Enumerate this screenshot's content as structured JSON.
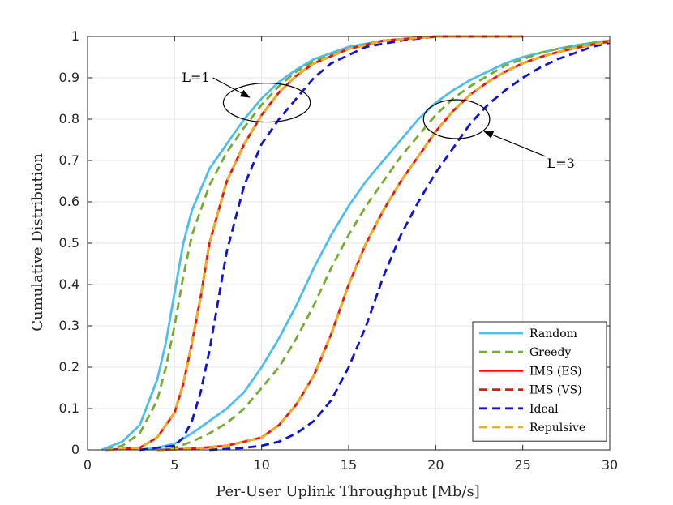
{
  "chart_data": {
    "type": "line",
    "title": "",
    "xlabel": "Per-User Uplink Throughput [Mb/s]",
    "ylabel": "Cumulative Distribution",
    "xlim": [
      0,
      30
    ],
    "ylim": [
      0,
      1
    ],
    "xticks": [
      0,
      5,
      10,
      15,
      20,
      25,
      30
    ],
    "yticks": [
      0,
      0.1,
      0.2,
      0.3,
      0.4,
      0.5,
      0.6,
      0.7,
      0.8,
      0.9,
      1
    ],
    "ytick_labels": [
      "0",
      "0.1",
      "0.2",
      "0.3",
      "0.4",
      "0.5",
      "0.6",
      "0.7",
      "0.8",
      "0.9",
      "1"
    ],
    "grid": true,
    "legend_position": "bottom-right",
    "series": [
      {
        "name": "Random",
        "group": "L=1",
        "color": "#4DBEEE",
        "dash": "solid",
        "x": [
          0.8,
          2,
          3,
          4,
          4.5,
          5,
          5.5,
          6,
          7,
          8,
          9,
          10,
          11,
          12,
          13,
          15,
          17,
          20,
          25
        ],
        "y": [
          0,
          0.02,
          0.06,
          0.17,
          0.26,
          0.38,
          0.5,
          0.58,
          0.68,
          0.74,
          0.8,
          0.85,
          0.89,
          0.92,
          0.945,
          0.975,
          0.99,
          1,
          1
        ]
      },
      {
        "name": "Greedy",
        "group": "L=1",
        "color": "#77AC30",
        "dash": "dashed",
        "x": [
          1,
          2,
          3,
          4,
          4.5,
          5,
          5.5,
          6,
          7,
          8,
          9,
          10,
          11,
          12,
          13,
          15,
          17,
          20,
          25
        ],
        "y": [
          0,
          0.01,
          0.04,
          0.12,
          0.2,
          0.3,
          0.42,
          0.52,
          0.64,
          0.72,
          0.78,
          0.835,
          0.88,
          0.915,
          0.94,
          0.97,
          0.99,
          1,
          1
        ]
      },
      {
        "name": "IMS (ES)",
        "group": "L=1",
        "color": "#EE1111",
        "dash": "solid",
        "x": [
          1,
          3,
          4,
          5,
          5.5,
          6,
          6.5,
          7,
          8,
          9,
          10,
          11,
          12,
          13,
          15,
          17,
          20,
          25
        ],
        "y": [
          0,
          0.005,
          0.03,
          0.09,
          0.16,
          0.26,
          0.37,
          0.5,
          0.65,
          0.74,
          0.81,
          0.865,
          0.905,
          0.935,
          0.97,
          0.99,
          1,
          1
        ]
      },
      {
        "name": "IMS (VS)",
        "group": "L=1",
        "color": "#EE1111",
        "dash": "dashed",
        "x": [
          1,
          3,
          4,
          5,
          5.5,
          6,
          6.5,
          7,
          8,
          9,
          10,
          11,
          12,
          13,
          15,
          17,
          20,
          25
        ],
        "y": [
          0,
          0.005,
          0.03,
          0.09,
          0.16,
          0.26,
          0.37,
          0.5,
          0.65,
          0.74,
          0.81,
          0.865,
          0.905,
          0.935,
          0.97,
          0.99,
          1,
          1
        ]
      },
      {
        "name": "Ideal",
        "group": "L=1",
        "color": "#1111DD",
        "dash": "dashed",
        "x": [
          3,
          5,
          5.5,
          6,
          6.5,
          7,
          7.5,
          8,
          9,
          10,
          11,
          12,
          13,
          14,
          16,
          18,
          20,
          25
        ],
        "y": [
          0,
          0.01,
          0.03,
          0.07,
          0.14,
          0.24,
          0.36,
          0.48,
          0.64,
          0.74,
          0.8,
          0.85,
          0.9,
          0.935,
          0.975,
          0.99,
          1,
          1
        ]
      },
      {
        "name": "Repulsive",
        "group": "L=1",
        "color": "#EDB120",
        "dash": "dashed",
        "x": [
          1,
          3,
          4,
          5,
          5.5,
          6,
          6.5,
          7,
          8,
          9,
          10,
          11,
          12,
          13,
          15,
          17,
          20,
          25
        ],
        "y": [
          0,
          0.005,
          0.03,
          0.09,
          0.16,
          0.26,
          0.37,
          0.5,
          0.65,
          0.74,
          0.81,
          0.865,
          0.905,
          0.935,
          0.97,
          0.99,
          1,
          1
        ]
      },
      {
        "name": "Random",
        "group": "L=3",
        "color": "#4DBEEE",
        "dash": "solid",
        "x": [
          3,
          4,
          5,
          6,
          7,
          8,
          9,
          10,
          11,
          12,
          13,
          14,
          15,
          16,
          17,
          18,
          19,
          20,
          21,
          22,
          23,
          24,
          25,
          26,
          27,
          28,
          29,
          30
        ],
        "y": [
          0,
          0.005,
          0.015,
          0.04,
          0.07,
          0.1,
          0.14,
          0.2,
          0.27,
          0.35,
          0.44,
          0.52,
          0.59,
          0.65,
          0.7,
          0.75,
          0.8,
          0.84,
          0.87,
          0.895,
          0.915,
          0.935,
          0.95,
          0.96,
          0.97,
          0.978,
          0.985,
          0.99
        ]
      },
      {
        "name": "Greedy",
        "group": "L=3",
        "color": "#77AC30",
        "dash": "dashed",
        "x": [
          4,
          5,
          6,
          7,
          8,
          9,
          10,
          11,
          12,
          13,
          14,
          15,
          16,
          17,
          18,
          19,
          20,
          21,
          22,
          23,
          24,
          25,
          26,
          27,
          28,
          29,
          30
        ],
        "y": [
          0,
          0.005,
          0.02,
          0.04,
          0.065,
          0.1,
          0.15,
          0.2,
          0.27,
          0.35,
          0.44,
          0.52,
          0.59,
          0.65,
          0.71,
          0.76,
          0.81,
          0.85,
          0.88,
          0.905,
          0.93,
          0.945,
          0.96,
          0.97,
          0.977,
          0.984,
          0.99
        ]
      },
      {
        "name": "IMS (ES)",
        "group": "L=3",
        "color": "#EE1111",
        "dash": "solid",
        "x": [
          4,
          6,
          8,
          9,
          10,
          11,
          12,
          13,
          14,
          15,
          16,
          17,
          18,
          19,
          20,
          21,
          22,
          23,
          24,
          25,
          26,
          27,
          28,
          29,
          30
        ],
        "y": [
          0,
          0.003,
          0.01,
          0.02,
          0.03,
          0.06,
          0.11,
          0.18,
          0.28,
          0.4,
          0.5,
          0.58,
          0.65,
          0.71,
          0.77,
          0.82,
          0.86,
          0.89,
          0.915,
          0.935,
          0.95,
          0.962,
          0.972,
          0.98,
          0.988
        ]
      },
      {
        "name": "IMS (VS)",
        "group": "L=3",
        "color": "#EE1111",
        "dash": "dashed",
        "x": [
          4,
          6,
          8,
          9,
          10,
          11,
          12,
          13,
          14,
          15,
          16,
          17,
          18,
          19,
          20,
          21,
          22,
          23,
          24,
          25,
          26,
          27,
          28,
          29,
          30
        ],
        "y": [
          0,
          0.003,
          0.01,
          0.02,
          0.03,
          0.06,
          0.11,
          0.18,
          0.28,
          0.4,
          0.5,
          0.58,
          0.65,
          0.71,
          0.77,
          0.82,
          0.86,
          0.89,
          0.915,
          0.935,
          0.95,
          0.962,
          0.972,
          0.98,
          0.988
        ]
      },
      {
        "name": "Ideal",
        "group": "L=3",
        "color": "#1111DD",
        "dash": "dashed",
        "x": [
          7,
          9,
          10,
          11,
          12,
          13,
          14,
          15,
          16,
          17,
          18,
          19,
          20,
          21,
          22,
          23,
          24,
          25,
          26,
          27,
          28,
          29,
          30
        ],
        "y": [
          0,
          0.005,
          0.01,
          0.02,
          0.04,
          0.07,
          0.12,
          0.2,
          0.3,
          0.42,
          0.52,
          0.6,
          0.67,
          0.73,
          0.79,
          0.835,
          0.87,
          0.9,
          0.925,
          0.945,
          0.96,
          0.975,
          0.985
        ]
      },
      {
        "name": "Repulsive",
        "group": "L=3",
        "color": "#EDB120",
        "dash": "dashed",
        "x": [
          4,
          6,
          8,
          9,
          10,
          11,
          12,
          13,
          14,
          15,
          16,
          17,
          18,
          19,
          20,
          21,
          22,
          23,
          24,
          25,
          26,
          27,
          28,
          29,
          30
        ],
        "y": [
          0,
          0.003,
          0.01,
          0.02,
          0.03,
          0.06,
          0.11,
          0.18,
          0.28,
          0.4,
          0.5,
          0.58,
          0.65,
          0.71,
          0.77,
          0.82,
          0.86,
          0.89,
          0.915,
          0.935,
          0.95,
          0.962,
          0.972,
          0.98,
          0.988
        ]
      }
    ],
    "legend": [
      {
        "name": "Random",
        "color": "#4DBEEE",
        "dash": "solid"
      },
      {
        "name": "Greedy",
        "color": "#77AC30",
        "dash": "dashed"
      },
      {
        "name": "IMS (ES)",
        "color": "#EE1111",
        "dash": "solid"
      },
      {
        "name": "IMS (VS)",
        "color": "#EE1111",
        "dash": "dashed"
      },
      {
        "name": "Ideal",
        "color": "#1111DD",
        "dash": "dashed"
      },
      {
        "name": "Repulsive",
        "color": "#EDB120",
        "dash": "dashed"
      }
    ],
    "annotations": [
      {
        "text": "L=1",
        "ellipse_center": [
          10.3,
          0.84
        ],
        "ellipse_radii": [
          2.5,
          0.047
        ],
        "arrow_from": [
          7.2,
          0.9
        ],
        "arrow_to": [
          9.3,
          0.853
        ]
      },
      {
        "text": "L=3",
        "ellipse_center": [
          21.2,
          0.8
        ],
        "ellipse_radii": [
          1.9,
          0.047
        ],
        "arrow_from": [
          26.3,
          0.71
        ],
        "arrow_to": [
          22.8,
          0.77
        ]
      }
    ]
  }
}
